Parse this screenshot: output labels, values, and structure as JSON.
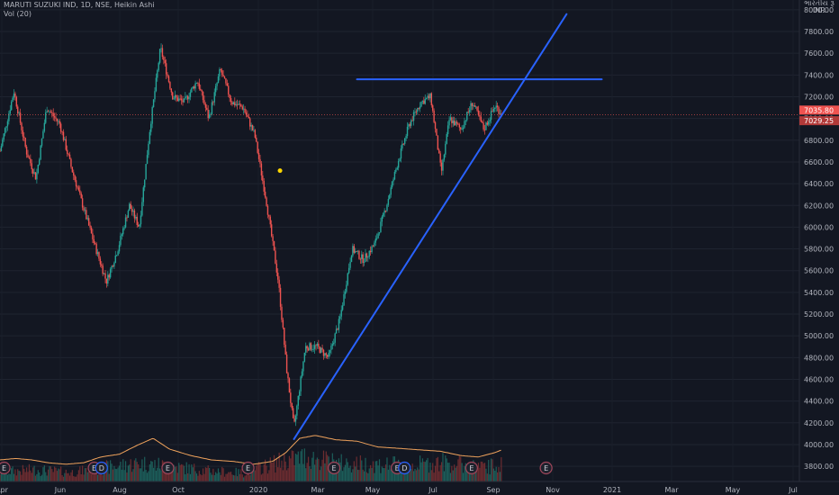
{
  "header": {
    "title": "MARUTI SUZUKI IND, 1D, NSE, Heikin Ashi",
    "volume_label": "Vol (20)"
  },
  "chart_data": {
    "type": "candlestick",
    "currency": "INR",
    "currency_prefix": "ભારતીય રૂ",
    "ylim": [
      3660,
      8090
    ],
    "yticks": [
      3800,
      4000,
      4200,
      4400,
      4600,
      4800,
      5000,
      5200,
      5400,
      5600,
      5800,
      6000,
      6200,
      6400,
      6600,
      6800,
      7000,
      7200,
      7400,
      7600,
      7800,
      8000
    ],
    "xlabels": [
      "Apr",
      "Jun",
      "Aug",
      "Oct",
      "2020",
      "Mar",
      "May",
      "Jul",
      "Sep",
      "Nov",
      "2021",
      "Mar",
      "May",
      "Jul"
    ],
    "last_price": "7035.80",
    "prev_price": "7029.25",
    "last_price_value": 7035.8,
    "prev_price_value": 7029.25,
    "price_series": [
      [
        "2019-04-01",
        6700
      ],
      [
        "2019-04-18",
        7250
      ],
      [
        "2019-05-03",
        6700
      ],
      [
        "2019-05-15",
        6450
      ],
      [
        "2019-05-28",
        7100
      ],
      [
        "2019-06-13",
        6950
      ],
      [
        "2019-06-27",
        6550
      ],
      [
        "2019-07-11",
        6200
      ],
      [
        "2019-07-25",
        5850
      ],
      [
        "2019-08-09",
        5500
      ],
      [
        "2019-08-23",
        5800
      ],
      [
        "2019-09-06",
        6200
      ],
      [
        "2019-09-18",
        6000
      ],
      [
        "2019-10-01",
        6900
      ],
      [
        "2019-10-14",
        7650
      ],
      [
        "2019-10-29",
        7200
      ],
      [
        "2019-11-12",
        7150
      ],
      [
        "2019-11-28",
        7350
      ],
      [
        "2019-12-12",
        7000
      ],
      [
        "2019-12-26",
        7450
      ],
      [
        "2020-01-09",
        7150
      ],
      [
        "2020-01-23",
        7100
      ],
      [
        "2020-02-06",
        6850
      ],
      [
        "2020-02-20",
        6250
      ],
      [
        "2020-03-06",
        5500
      ],
      [
        "2020-03-16",
        4700
      ],
      [
        "2020-03-25",
        4150
      ],
      [
        "2020-04-08",
        4900
      ],
      [
        "2020-04-22",
        4900
      ],
      [
        "2020-05-06",
        4800
      ],
      [
        "2020-05-20",
        5150
      ],
      [
        "2020-06-04",
        5800
      ],
      [
        "2020-06-18",
        5700
      ],
      [
        "2020-07-02",
        5850
      ],
      [
        "2020-07-16",
        6200
      ],
      [
        "2020-07-30",
        6600
      ],
      [
        "2020-08-13",
        6950
      ],
      [
        "2020-08-27",
        7150
      ],
      [
        "2020-09-08",
        7200
      ],
      [
        "2020-09-21",
        6500
      ],
      [
        "2020-10-01",
        7000
      ],
      [
        "2020-10-15",
        6900
      ],
      [
        "2020-10-29",
        7150
      ],
      [
        "2020-11-12",
        6900
      ],
      [
        "2020-11-26",
        7120
      ],
      [
        "2020-12-04",
        7036
      ]
    ],
    "volume_series": [
      [
        "2019-04-01",
        0.45
      ],
      [
        "2019-05-15",
        0.55
      ],
      [
        "2019-06-27",
        0.42
      ],
      [
        "2019-08-09",
        0.65
      ],
      [
        "2019-09-18",
        0.85
      ],
      [
        "2019-10-29",
        0.7
      ],
      [
        "2019-12-12",
        0.5
      ],
      [
        "2020-01-23",
        0.4
      ],
      [
        "2020-03-06",
        0.9
      ],
      [
        "2020-04-08",
        1.15
      ],
      [
        "2020-05-20",
        0.85
      ],
      [
        "2020-07-02",
        0.8
      ],
      [
        "2020-08-13",
        0.75
      ],
      [
        "2020-09-21",
        0.9
      ],
      [
        "2020-11-12",
        0.65
      ],
      [
        "2020-12-04",
        0.8
      ]
    ],
    "volume_ma": [
      [
        "2019-04-01",
        0.3
      ],
      [
        "2019-04-20",
        0.32
      ],
      [
        "2019-05-10",
        0.3
      ],
      [
        "2019-05-30",
        0.26
      ],
      [
        "2019-06-20",
        0.24
      ],
      [
        "2019-07-12",
        0.26
      ],
      [
        "2019-08-02",
        0.34
      ],
      [
        "2019-08-25",
        0.38
      ],
      [
        "2019-09-15",
        0.5
      ],
      [
        "2019-10-05",
        0.6
      ],
      [
        "2019-10-25",
        0.45
      ],
      [
        "2019-11-20",
        0.36
      ],
      [
        "2019-12-15",
        0.3
      ],
      [
        "2020-01-10",
        0.28
      ],
      [
        "2020-02-05",
        0.24
      ],
      [
        "2020-02-28",
        0.28
      ],
      [
        "2020-03-15",
        0.4
      ],
      [
        "2020-04-01",
        0.6
      ],
      [
        "2020-04-20",
        0.64
      ],
      [
        "2020-05-15",
        0.58
      ],
      [
        "2020-06-10",
        0.56
      ],
      [
        "2020-07-05",
        0.48
      ],
      [
        "2020-08-01",
        0.46
      ],
      [
        "2020-08-25",
        0.44
      ],
      [
        "2020-09-20",
        0.42
      ],
      [
        "2020-10-15",
        0.36
      ],
      [
        "2020-11-05",
        0.34
      ],
      [
        "2020-11-25",
        0.4
      ],
      [
        "2020-12-04",
        0.44
      ]
    ],
    "trendlines": [
      {
        "from": [
          "2020-03-25",
          4050
        ],
        "to": [
          "2021-02-21",
          7960
        ]
      },
      {
        "from": [
          "2020-06-10",
          7360
        ],
        "to": [
          "2021-04-05",
          7360
        ]
      }
    ],
    "marker": {
      "date": "2020-03-08",
      "value": 6520
    },
    "events": [
      {
        "label": "E",
        "date": "2019-04-06"
      },
      {
        "label": "E",
        "date": "2019-07-25"
      },
      {
        "label": "D",
        "date": "2019-08-03"
      },
      {
        "label": "E",
        "date": "2019-10-23"
      },
      {
        "label": "E",
        "date": "2020-01-29"
      },
      {
        "label": "E",
        "date": "2020-05-13"
      },
      {
        "label": "E",
        "date": "2020-07-29"
      },
      {
        "label": "D",
        "date": "2020-08-07"
      },
      {
        "label": "E",
        "date": "2020-10-28"
      },
      {
        "label": "E",
        "date": "2021-01-27"
      }
    ]
  }
}
